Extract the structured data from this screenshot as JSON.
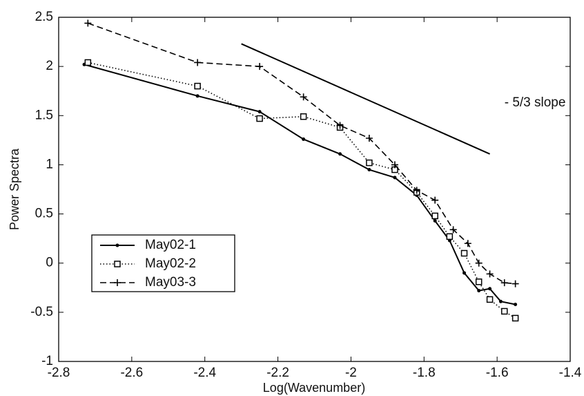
{
  "chart_data": {
    "type": "line",
    "xlabel": "Log(Wavenumber)",
    "ylabel": "Power Spectra",
    "xlim": [
      -2.8,
      -1.4
    ],
    "xticks": [
      -2.8,
      -2.6,
      -2.4,
      -2.2,
      -2,
      -1.8,
      -1.6,
      -1.4
    ],
    "ylim": [
      -1,
      2.5
    ],
    "yticks": [
      -1,
      -0.5,
      0,
      0.5,
      1,
      1.5,
      2,
      2.5
    ],
    "grid": false,
    "legend": "center left",
    "series": [
      {
        "name": "May02-1",
        "color": "#000000",
        "style": "solid",
        "marker": "dot",
        "x": [
          -2.73,
          -2.42,
          -2.25,
          -2.13,
          -2.03,
          -1.95,
          -1.88,
          -1.82,
          -1.77,
          -1.73,
          -1.69,
          -1.65,
          -1.62,
          -1.59,
          -1.55
        ],
        "values": [
          2.02,
          1.7,
          1.54,
          1.26,
          1.11,
          0.95,
          0.87,
          0.69,
          0.43,
          0.23,
          -0.1,
          -0.28,
          -0.26,
          -0.39,
          -0.42
        ]
      },
      {
        "name": "May02-2",
        "color": "#000000",
        "style": "dotted",
        "marker": "square",
        "x": [
          -2.72,
          -2.42,
          -2.25,
          -2.13,
          -2.03,
          -1.95,
          -1.88,
          -1.82,
          -1.77,
          -1.73,
          -1.69,
          -1.65,
          -1.62,
          -1.58,
          -1.55
        ],
        "values": [
          2.04,
          1.8,
          1.47,
          1.49,
          1.38,
          1.02,
          0.95,
          0.72,
          0.48,
          0.27,
          0.1,
          -0.19,
          -0.37,
          -0.49,
          -0.56
        ]
      },
      {
        "name": "May03-3",
        "color": "#000000",
        "style": "dashed",
        "marker": "plus",
        "x": [
          -2.72,
          -2.42,
          -2.25,
          -2.13,
          -2.03,
          -1.95,
          -1.88,
          -1.82,
          -1.77,
          -1.72,
          -1.68,
          -1.65,
          -1.62,
          -1.58,
          -1.55
        ],
        "values": [
          2.44,
          2.04,
          2.0,
          1.69,
          1.4,
          1.27,
          1.0,
          0.74,
          0.64,
          0.34,
          0.2,
          0.0,
          -0.11,
          -0.2,
          -0.21
        ]
      }
    ],
    "reference_line": {
      "x": [
        -2.3,
        -1.62
      ],
      "values": [
        2.23,
        1.11
      ],
      "color": "#000000"
    },
    "annotation": {
      "text": "- 5/3 slope",
      "x": -1.58,
      "y": 1.63
    }
  }
}
